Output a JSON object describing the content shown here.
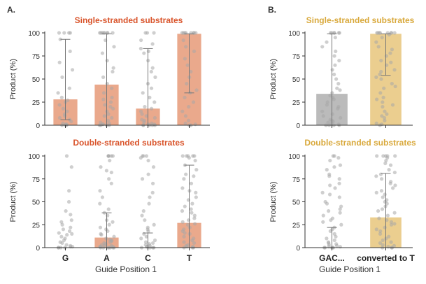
{
  "panel_labels": {
    "A": "A.",
    "B": "B."
  },
  "colors": {
    "orange_title": "#d9542b",
    "gold_title": "#d9a93c",
    "orange_bar": "#e8a080",
    "gold_bar": "#e9c983",
    "gray_bar": "#b4b4b4",
    "dot": "#a8a8a8",
    "axis": "#333333",
    "errorbar": "#777777"
  },
  "shared_xlabel": {
    "A": "Guide Position 1",
    "B": "Guide Position 1"
  },
  "chart_data": [
    {
      "id": "A-top",
      "type": "bar",
      "title": "Single-stranded substrates",
      "ylabel": "Product (%)",
      "ylim": [
        0,
        100
      ],
      "yticks": [
        "0",
        "25",
        "50",
        "75",
        "100"
      ],
      "categories": [
        "G",
        "A",
        "C",
        "T"
      ],
      "show_category_labels": false,
      "values": [
        28,
        44,
        18,
        99
      ],
      "error_high": [
        93,
        99,
        83,
        99
      ],
      "error_low": [
        6,
        0,
        0,
        35
      ],
      "bar_color": "orange_bar",
      "title_color": "orange_title",
      "points": [
        [
          100,
          100,
          100,
          100,
          93,
          80,
          68,
          60,
          52,
          40,
          35,
          30,
          27,
          25,
          22,
          18,
          15,
          12,
          10,
          8,
          6,
          4,
          2,
          1,
          1,
          0,
          0,
          0
        ],
        [
          100,
          100,
          100,
          100,
          100,
          100,
          100,
          100,
          92,
          85,
          78,
          70,
          62,
          58,
          52,
          45,
          40,
          35,
          30,
          28,
          25,
          22,
          20,
          18,
          15,
          12,
          10,
          8,
          5,
          3,
          2,
          1,
          1,
          0,
          0,
          0,
          0
        ],
        [
          100,
          100,
          100,
          92,
          88,
          83,
          80,
          78,
          70,
          62,
          58,
          52,
          45,
          40,
          35,
          30,
          25,
          20,
          18,
          15,
          12,
          10,
          8,
          6,
          5,
          3,
          2,
          1,
          1,
          0,
          0,
          0,
          0,
          0
        ],
        [
          100,
          100,
          100,
          100,
          100,
          100,
          100,
          100,
          92,
          85,
          80,
          72,
          65,
          58,
          52,
          45,
          38,
          35,
          30,
          25,
          20,
          15,
          10,
          5,
          2,
          1,
          0,
          0
        ]
      ]
    },
    {
      "id": "A-bottom",
      "type": "bar",
      "title": "Double-stranded substrates",
      "ylabel": "Product (%)",
      "ylim": [
        0,
        100
      ],
      "yticks": [
        "0",
        "25",
        "50",
        "75",
        "100"
      ],
      "categories": [
        "G",
        "A",
        "C",
        "T"
      ],
      "show_category_labels": true,
      "values": [
        0,
        11,
        0,
        27
      ],
      "error_high": [
        0,
        38,
        16,
        90
      ],
      "error_low": [
        0,
        0,
        0,
        0
      ],
      "bar_color": "orange_bar",
      "title_color": "orange_title",
      "points": [
        [
          100,
          88,
          62,
          50,
          40,
          36,
          30,
          28,
          25,
          22,
          20,
          18,
          16,
          15,
          14,
          12,
          10,
          8,
          6,
          5,
          3,
          2,
          1,
          1,
          0,
          0,
          0,
          0
        ],
        [
          100,
          100,
          100,
          100,
          100,
          95,
          88,
          84,
          82,
          75,
          70,
          62,
          55,
          48,
          42,
          38,
          35,
          30,
          28,
          25,
          22,
          20,
          18,
          15,
          14,
          12,
          10,
          9,
          8,
          7,
          6,
          5,
          4,
          3,
          2,
          2,
          1,
          1,
          1,
          0,
          0,
          0,
          0,
          0,
          0,
          0
        ],
        [
          100,
          100,
          100,
          98,
          95,
          88,
          80,
          75,
          70,
          60,
          55,
          48,
          40,
          35,
          30,
          25,
          22,
          20,
          18,
          15,
          12,
          10,
          8,
          6,
          5,
          4,
          3,
          2,
          1,
          1,
          0,
          0,
          0,
          0
        ],
        [
          100,
          100,
          100,
          100,
          100,
          98,
          95,
          90,
          85,
          80,
          78,
          75,
          70,
          65,
          62,
          60,
          55,
          52,
          48,
          45,
          42,
          40,
          38,
          35,
          32,
          30,
          28,
          26,
          25,
          22,
          20,
          18,
          16,
          15,
          12,
          10,
          8,
          6,
          5,
          3,
          2,
          1,
          1,
          0,
          0,
          0
        ]
      ]
    },
    {
      "id": "B-top",
      "type": "bar",
      "title": "Single-stranded substrates",
      "ylabel": "Product (%)",
      "ylim": [
        0,
        100
      ],
      "yticks": [
        "0",
        "25",
        "50",
        "75",
        "100"
      ],
      "categories": [
        "GAC...",
        "converted to T"
      ],
      "show_category_labels": false,
      "values": [
        34,
        99
      ],
      "error_high": [
        99,
        99
      ],
      "error_low": [
        0,
        54
      ],
      "bar_colors": [
        "gray_bar",
        "gold_bar"
      ],
      "title_color": "gold_title",
      "points": [
        [
          100,
          100,
          100,
          100,
          100,
          100,
          95,
          90,
          85,
          80,
          75,
          70,
          65,
          60,
          55,
          50,
          45,
          40,
          38,
          35,
          32,
          30,
          28,
          25,
          22,
          20,
          18,
          15,
          12,
          10,
          8,
          6,
          5,
          4,
          3,
          2,
          1,
          0,
          0,
          0,
          0
        ],
        [
          100,
          100,
          100,
          100,
          100,
          100,
          100,
          100,
          98,
          95,
          90,
          85,
          82,
          78,
          75,
          70,
          68,
          65,
          60,
          58,
          55,
          52,
          50,
          45,
          42,
          40,
          35,
          30,
          28,
          25,
          22,
          20,
          15,
          12,
          10,
          8,
          5,
          2,
          1,
          0
        ]
      ]
    },
    {
      "id": "B-bottom",
      "type": "bar",
      "title": "Double-stranded substrates",
      "ylabel": "Product (%)",
      "ylim": [
        0,
        100
      ],
      "yticks": [
        "0",
        "25",
        "50",
        "75",
        "100"
      ],
      "categories": [
        "GAC...",
        "converted to T"
      ],
      "show_category_labels": true,
      "values": [
        0,
        33
      ],
      "error_high": [
        22,
        81
      ],
      "error_low": [
        0,
        0
      ],
      "bar_colors": [
        "gray_bar",
        "gold_bar"
      ],
      "title_color": "gold_title",
      "points": [
        [
          100,
          100,
          98,
          95,
          90,
          88,
          85,
          80,
          78,
          75,
          70,
          68,
          65,
          60,
          58,
          55,
          50,
          48,
          45,
          42,
          40,
          38,
          35,
          32,
          30,
          28,
          25,
          22,
          20,
          18,
          15,
          12,
          10,
          8,
          6,
          5,
          4,
          3,
          2,
          1,
          1,
          0,
          0,
          0,
          0,
          0
        ],
        [
          100,
          100,
          100,
          100,
          100,
          98,
          95,
          92,
          90,
          85,
          82,
          80,
          78,
          75,
          72,
          70,
          68,
          65,
          62,
          60,
          58,
          55,
          52,
          50,
          48,
          45,
          42,
          40,
          38,
          35,
          32,
          30,
          28,
          26,
          25,
          22,
          20,
          18,
          15,
          12,
          10,
          8,
          6,
          5,
          3,
          2,
          1,
          0,
          0,
          0
        ]
      ]
    }
  ]
}
